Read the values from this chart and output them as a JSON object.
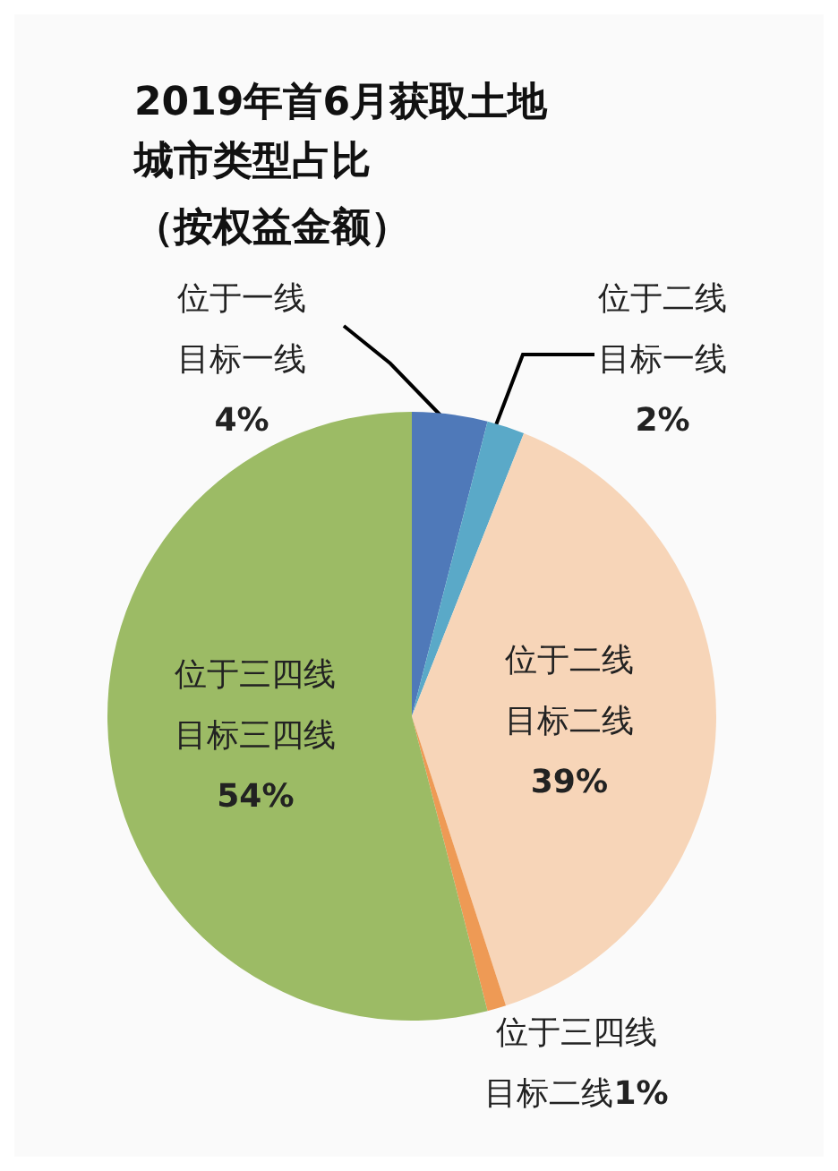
{
  "chart_data": {
    "type": "pie",
    "title": "2019年首6月获取土地城市类型占比",
    "subtitle": "（按权益金额）",
    "categories": [
      "位于一线目标一线",
      "位于二线目标一线",
      "位于二线目标二线",
      "位于三四线目标二线",
      "位于三四线目标三四线"
    ],
    "values": [
      4,
      2,
      39,
      1,
      54
    ],
    "value_labels": [
      "4%",
      "2%",
      "39%",
      "1%",
      "54%"
    ],
    "colors": [
      "#4f79b9",
      "#5aa9c8",
      "#f7d5b8",
      "#ee9a55",
      "#9cbb65"
    ],
    "legend": false
  }
}
